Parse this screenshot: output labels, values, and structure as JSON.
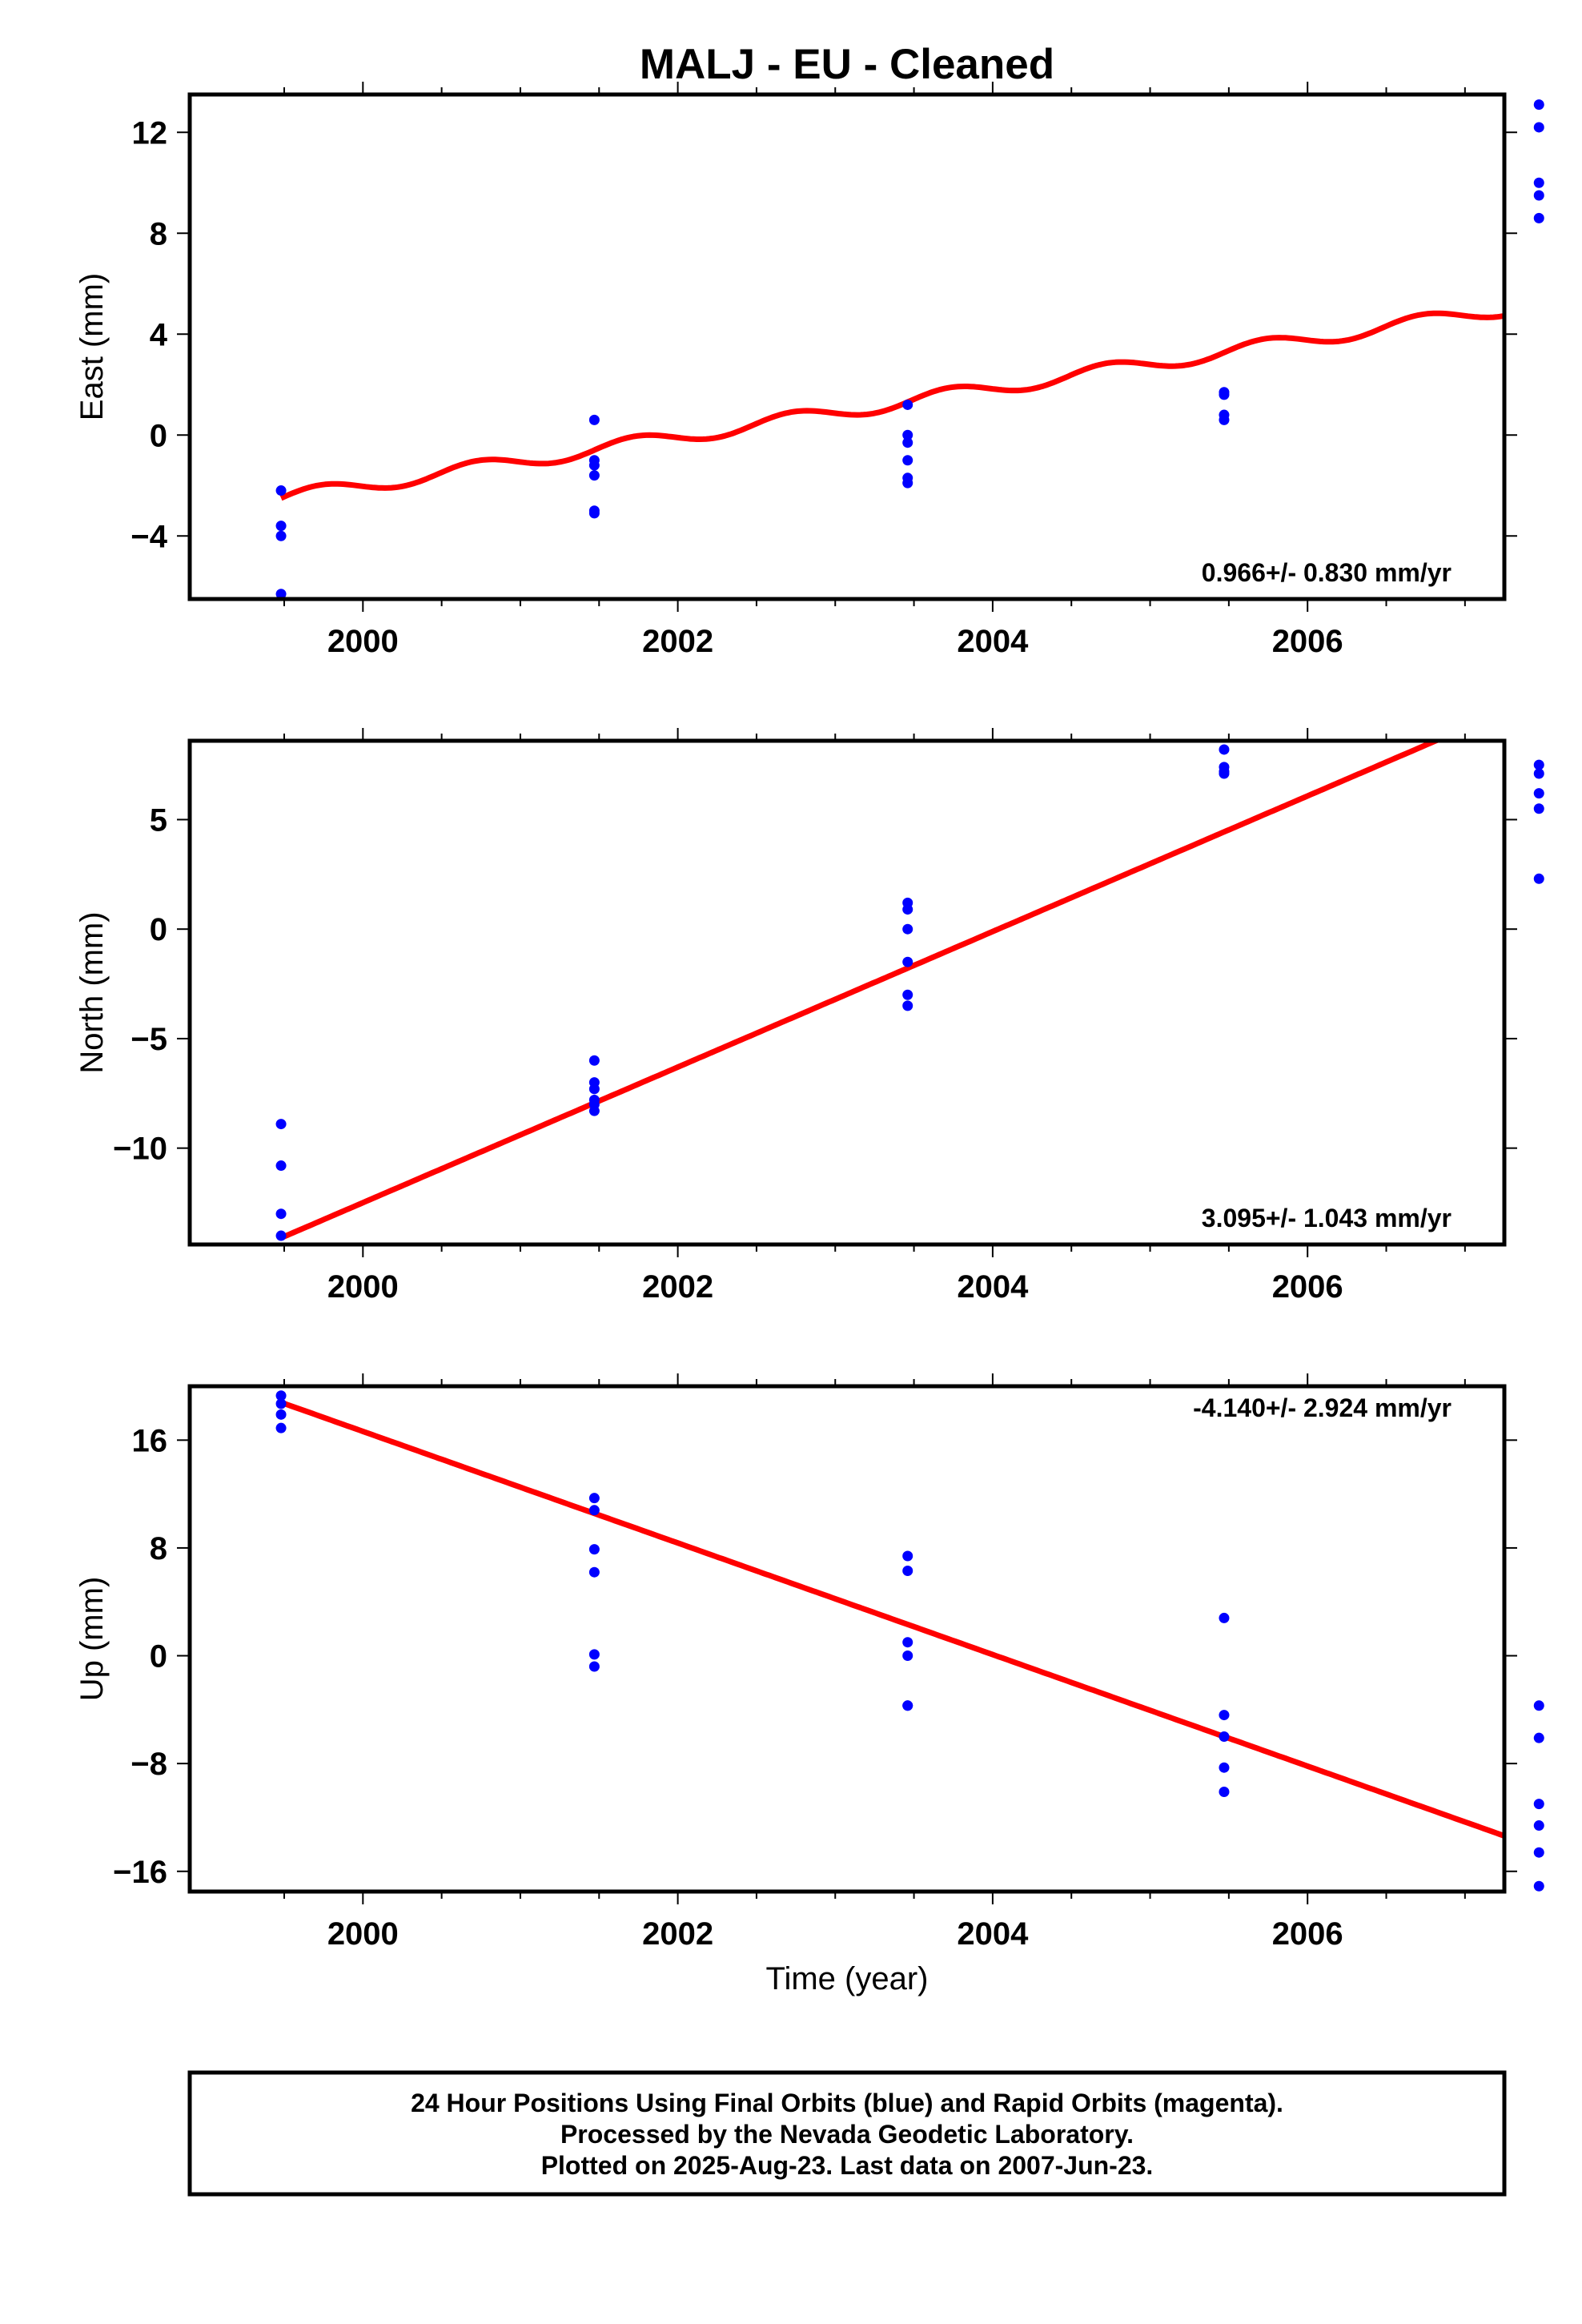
{
  "chart_data": {
    "title": "MALJ  - EU - Cleaned",
    "type": "scatter",
    "xlabel": "Time (year)",
    "xlim": [
      1998.9,
      2007.25
    ],
    "xticks": [
      2000,
      2002,
      2004,
      2006
    ],
    "xtick_labels": [
      "2000",
      "2002",
      "2004",
      "2006"
    ],
    "series_colors": {
      "data": "#0000ff",
      "fit": "#ff0000"
    },
    "panels": [
      {
        "ylabel": "East (mm)",
        "ylim": [
          -6.5,
          13.5
        ],
        "yticks": [
          -4,
          0,
          4,
          8,
          12
        ],
        "ytick_labels": [
          "−4",
          "0",
          "4",
          "8",
          "12"
        ],
        "rate_label": "0.966+/- 0.830 mm/yr",
        "rate_pos": "bottom-right",
        "fit": {
          "kind": "seasonal",
          "start": [
            1999.48,
            -2.5
          ],
          "rate": 0.966,
          "amplitude": 0.28,
          "x_end": 2007.48
        },
        "points": {
          "x": [
            1999.48,
            1999.48,
            1999.48,
            1999.48,
            2001.47,
            2001.47,
            2001.47,
            2001.47,
            2001.47,
            2001.47,
            2003.46,
            2003.46,
            2003.46,
            2003.46,
            2003.46,
            2003.46,
            2005.47,
            2005.47,
            2005.47,
            2005.47,
            2007.47,
            2007.47,
            2007.47,
            2007.47,
            2007.47
          ],
          "y": [
            -2.2,
            -3.6,
            -4.0,
            -6.3,
            0.6,
            -1.0,
            -1.2,
            -1.6,
            -3.0,
            -3.1,
            1.2,
            0.0,
            -0.3,
            -1.0,
            -1.7,
            -1.9,
            1.7,
            1.6,
            0.8,
            0.6,
            13.1,
            12.2,
            10.0,
            9.5,
            8.6
          ]
        }
      },
      {
        "ylabel": "North (mm)",
        "ylim": [
          -14.4,
          8.6
        ],
        "yticks": [
          -10,
          -5,
          0,
          5
        ],
        "ytick_labels": [
          "−10",
          "−5",
          "0",
          "5"
        ],
        "rate_label": "3.095+/- 1.043 mm/yr",
        "rate_pos": "bottom-right",
        "fit": {
          "kind": "linear",
          "start": [
            1999.48,
            -14.1
          ],
          "rate": 3.095,
          "x_end": 2007.48
        },
        "points": {
          "x": [
            1999.48,
            1999.48,
            1999.48,
            1999.48,
            2001.47,
            2001.47,
            2001.47,
            2001.47,
            2001.47,
            2001.47,
            2003.46,
            2003.46,
            2003.46,
            2003.46,
            2003.46,
            2003.46,
            2005.47,
            2005.47,
            2005.47,
            2005.47,
            2007.47,
            2007.47,
            2007.47,
            2007.47,
            2007.47
          ],
          "y": [
            -8.9,
            -10.8,
            -13.0,
            -14.0,
            -6.0,
            -7.0,
            -7.3,
            -7.8,
            -8.0,
            -8.3,
            1.2,
            0.9,
            0.0,
            -1.5,
            -3.0,
            -3.5,
            8.2,
            7.4,
            7.2,
            7.1,
            7.5,
            7.1,
            6.2,
            5.5,
            2.3
          ]
        }
      },
      {
        "ylabel": "Up (mm)",
        "ylim": [
          -17.5,
          20.0
        ],
        "yticks": [
          -16,
          -8,
          0,
          8,
          16
        ],
        "ytick_labels": [
          "−16",
          "−8",
          "0",
          "8",
          "16"
        ],
        "rate_label": "-4.140+/- 2.924 mm/yr",
        "rate_pos": "top-right",
        "fit": {
          "kind": "linear",
          "start": [
            1999.48,
            18.8
          ],
          "rate": -4.14,
          "x_end": 2007.48
        },
        "points": {
          "x": [
            1999.48,
            1999.48,
            1999.48,
            1999.48,
            2001.47,
            2001.47,
            2001.47,
            2001.47,
            2001.47,
            2001.47,
            2003.46,
            2003.46,
            2003.46,
            2003.46,
            2003.46,
            2003.46,
            2005.47,
            2005.47,
            2005.47,
            2005.47,
            2005.47,
            2007.47,
            2007.47,
            2007.47,
            2007.47,
            2007.47,
            2007.47
          ],
          "y": [
            19.3,
            18.7,
            17.9,
            16.9,
            11.7,
            10.8,
            7.9,
            6.2,
            0.1,
            -0.8,
            7.4,
            6.3,
            1.0,
            0.0,
            -3.7,
            -3.7,
            2.8,
            -4.4,
            -6.0,
            -8.3,
            -10.1,
            -3.7,
            -6.1,
            -11.0,
            -12.6,
            -14.6,
            -17.1
          ]
        }
      }
    ]
  },
  "footer": {
    "line1": "24 Hour Positions Using Final Orbits (blue) and Rapid Orbits (magenta).",
    "line2": "Processed by the Nevada Geodetic Laboratory.",
    "line3": "Plotted on 2025-Aug-23. Last data on 2007-Jun-23."
  }
}
